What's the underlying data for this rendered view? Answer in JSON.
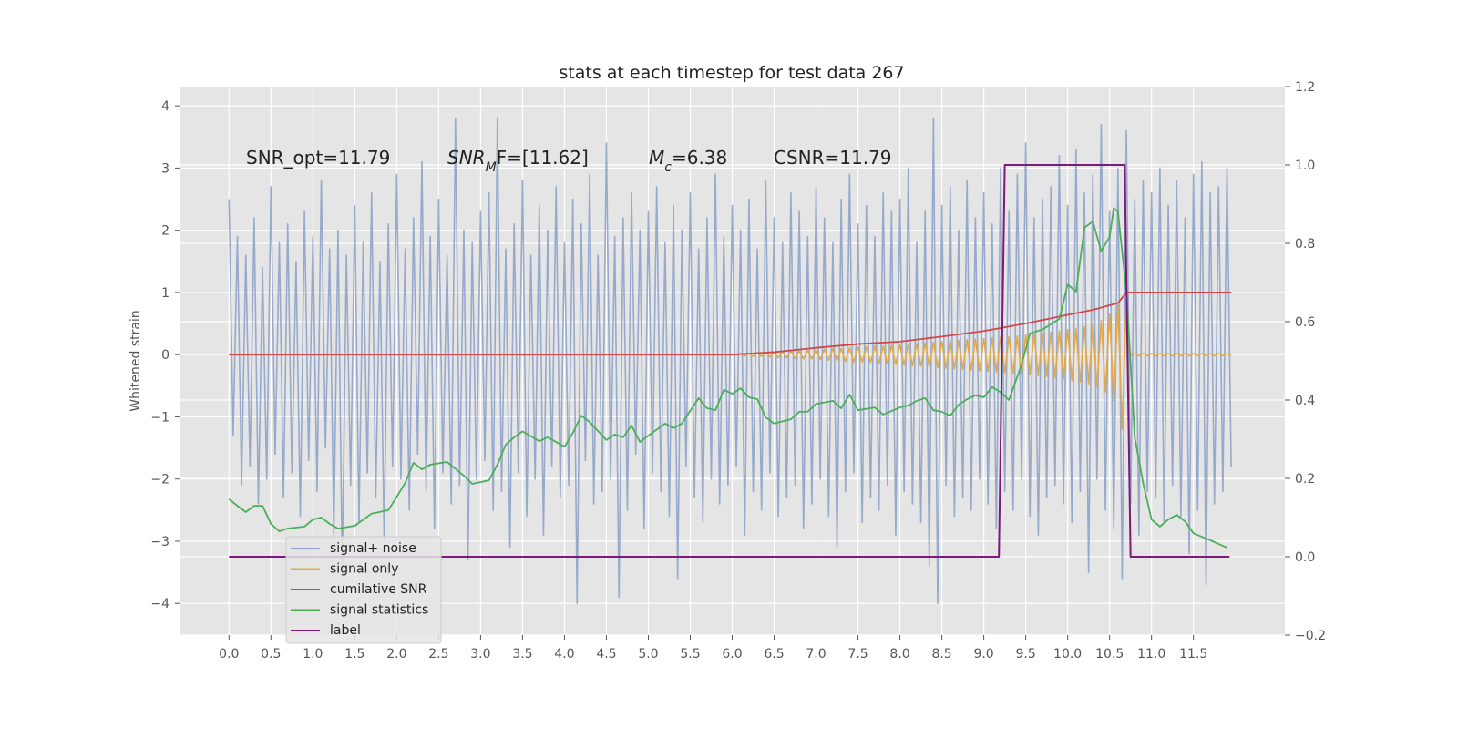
{
  "chart_data": {
    "type": "line",
    "title": "stats at each timestep for test data 267",
    "ylabel": "Whitened strain",
    "annotations": [
      [
        "SNR_opt=11.79"
      ],
      [
        "SNR",
        "M",
        "F=[11.62]"
      ],
      [
        "M",
        "c",
        "=6.38"
      ],
      [
        "CSNR=11.79"
      ]
    ],
    "grid": true,
    "legend": "lower left",
    "xlim": [
      -0.59,
      12.59
    ],
    "ylim": [
      -4.51,
      4.31
    ],
    "y2lim": [
      -0.2,
      1.2
    ],
    "xticks": [
      {
        "value": 0,
        "label": "0.0"
      },
      0.5,
      {
        "value": 1,
        "label": "1.0"
      },
      1.5,
      {
        "value": 2,
        "label": "2.0"
      },
      2.5,
      {
        "value": 3,
        "label": "3.0"
      },
      3.5,
      {
        "value": 4,
        "label": "4.0"
      },
      4.5,
      {
        "value": 5,
        "label": "5.0"
      },
      5.5,
      {
        "value": 6,
        "label": "6.0"
      },
      6.5,
      {
        "value": 7,
        "label": "7.0"
      },
      7.5,
      {
        "value": 8,
        "label": "8.0"
      },
      8.5,
      {
        "value": 9,
        "label": "9.0"
      },
      9.5,
      {
        "value": 10,
        "label": "10.0"
      },
      10.5,
      {
        "value": 11,
        "label": "11.0"
      },
      11.5
    ],
    "yticks": [
      {
        "value": -4,
        "label": "−4"
      },
      {
        "value": -3,
        "label": "−3"
      },
      {
        "value": -2,
        "label": "−2"
      },
      {
        "value": -1,
        "label": "−1"
      },
      0,
      1,
      2,
      3,
      4
    ],
    "y2ticks": [
      {
        "value": -0.2,
        "label": "−0.2"
      },
      {
        "value": 0,
        "label": "0.0"
      },
      0.2,
      0.4,
      0.6,
      0.8,
      {
        "value": 1,
        "label": "1.0"
      },
      1.2
    ],
    "x": [
      0,
      0.05,
      0.1,
      0.15,
      0.2,
      0.25,
      0.3,
      0.35,
      0.4,
      0.45,
      0.5,
      0.55,
      0.6,
      0.65,
      0.7,
      0.75,
      0.8,
      0.85,
      0.9,
      0.95,
      1,
      1.05,
      1.1,
      1.15,
      1.2,
      1.25,
      1.3,
      1.35,
      1.4,
      1.45,
      1.5,
      1.55,
      1.6,
      1.65,
      1.7,
      1.75,
      1.8,
      1.85,
      1.9,
      1.95,
      2,
      2.05,
      2.1,
      2.15,
      2.2,
      2.25,
      2.3,
      2.35,
      2.4,
      2.45,
      2.5,
      2.55,
      2.6,
      2.65,
      2.7,
      2.75,
      2.8,
      2.85,
      2.9,
      2.95,
      3,
      3.05,
      3.1,
      3.15,
      3.2,
      3.25,
      3.3,
      3.35,
      3.4,
      3.45,
      3.5,
      3.55,
      3.6,
      3.65,
      3.7,
      3.75,
      3.8,
      3.85,
      3.9,
      3.95,
      4,
      4.05,
      4.1,
      4.15,
      4.2,
      4.25,
      4.3,
      4.35,
      4.4,
      4.45,
      4.5,
      4.55,
      4.6,
      4.65,
      4.7,
      4.75,
      4.8,
      4.85,
      4.9,
      4.95,
      5,
      5.05,
      5.1,
      5.15,
      5.2,
      5.25,
      5.3,
      5.35,
      5.4,
      5.45,
      5.5,
      5.55,
      5.6,
      5.65,
      5.7,
      5.75,
      5.8,
      5.85,
      5.9,
      5.95,
      6,
      6.05,
      6.1,
      6.15,
      6.2,
      6.25,
      6.3,
      6.35,
      6.4,
      6.45,
      6.5,
      6.55,
      6.6,
      6.65,
      6.7,
      6.75,
      6.8,
      6.85,
      6.9,
      6.95,
      7,
      7.05,
      7.1,
      7.15,
      7.2,
      7.25,
      7.3,
      7.35,
      7.4,
      7.45,
      7.5,
      7.55,
      7.6,
      7.65,
      7.7,
      7.75,
      7.8,
      7.85,
      7.9,
      7.95,
      8,
      8.05,
      8.1,
      8.15,
      8.2,
      8.25,
      8.3,
      8.35,
      8.4,
      8.45,
      8.5,
      8.55,
      8.6,
      8.65,
      8.7,
      8.75,
      8.8,
      8.85,
      8.9,
      8.95,
      9,
      9.05,
      9.1,
      9.15,
      9.2,
      9.25,
      9.3,
      9.35,
      9.4,
      9.45,
      9.5,
      9.55,
      9.6,
      9.65,
      9.7,
      9.75,
      9.8,
      9.85,
      9.9,
      9.95,
      10,
      10.05,
      10.1,
      10.15,
      10.2,
      10.25,
      10.3,
      10.35,
      10.4,
      10.45,
      10.5,
      10.55,
      10.6,
      10.65,
      10.7,
      10.75,
      10.8,
      10.85,
      10.9,
      10.95,
      11,
      11.05,
      11.1,
      11.15,
      11.2,
      11.25,
      11.3,
      11.35,
      11.4,
      11.45,
      11.5,
      11.55,
      11.6,
      11.65,
      11.7,
      11.75,
      11.8,
      11.85,
      11.9,
      11.95
    ],
    "series": [
      {
        "name": "signal+ noise",
        "color": "#8ea3c9",
        "values": [
          2.5,
          -1.3,
          1.9,
          -2.1,
          1.6,
          -1.8,
          2.2,
          -2.4,
          1.4,
          -2.0,
          2.7,
          -1.6,
          1.8,
          -2.3,
          2.1,
          -1.9,
          1.5,
          -2.6,
          2.3,
          -1.7,
          1.9,
          -2.2,
          2.8,
          -1.5,
          1.7,
          -2.9,
          2.0,
          -3.5,
          1.6,
          -2.1,
          2.4,
          -2.7,
          1.8,
          -1.9,
          2.6,
          -2.3,
          1.5,
          -3.0,
          2.1,
          -1.8,
          2.9,
          -2.0,
          1.7,
          -2.5,
          2.2,
          -1.6,
          3.1,
          -2.2,
          1.9,
          -2.8,
          2.5,
          -1.9,
          1.6,
          -2.4,
          3.8,
          -2.1,
          2.0,
          -3.3,
          1.8,
          -2.0,
          2.3,
          -1.7,
          2.6,
          -2.5,
          3.8,
          -2.2,
          1.7,
          -3.1,
          2.1,
          -1.9,
          2.8,
          -2.6,
          1.6,
          -2.0,
          2.4,
          -2.9,
          2.0,
          -1.8,
          2.7,
          -2.3,
          1.8,
          -2.1,
          2.5,
          -4.0,
          2.1,
          -1.7,
          2.9,
          -2.4,
          1.6,
          -2.2,
          3.4,
          -2.0,
          1.9,
          -3.9,
          2.2,
          -2.5,
          2.6,
          -1.6,
          2.0,
          -2.8,
          2.3,
          -1.9,
          2.7,
          -2.2,
          1.8,
          -2.6,
          2.4,
          -3.6,
          2.0,
          -1.8,
          2.6,
          -2.3,
          1.7,
          -2.7,
          2.2,
          -2.0,
          2.9,
          -2.4,
          1.9,
          -2.1,
          2.4,
          -1.8,
          2.0,
          -2.9,
          2.5,
          -2.2,
          1.7,
          -2.5,
          2.8,
          -1.9,
          2.2,
          -2.6,
          1.8,
          -2.3,
          2.6,
          -2.1,
          2.3,
          -2.8,
          1.9,
          -2.4,
          2.7,
          -2.0,
          2.2,
          -2.6,
          1.8,
          -3.1,
          2.5,
          -2.2,
          2.9,
          -1.9,
          2.1,
          -2.7,
          2.4,
          -2.3,
          1.9,
          -2.5,
          2.6,
          -2.1,
          2.3,
          -2.9,
          2.5,
          -2.2,
          3.0,
          -2.4,
          1.8,
          -2.7,
          2.3,
          -3.4,
          3.8,
          -4.0,
          2.4,
          -2.1,
          2.7,
          -2.6,
          2.0,
          -2.3,
          2.8,
          -2.5,
          2.2,
          -2.0,
          2.6,
          -2.4,
          2.1,
          -2.8,
          3.0,
          -2.2,
          2.3,
          -2.5,
          2.9,
          -2.0,
          3.4,
          -2.6,
          2.2,
          -2.9,
          2.5,
          -2.3,
          2.7,
          -2.1,
          3.2,
          -2.4,
          2.4,
          -2.7,
          3.3,
          -2.2,
          2.6,
          -3.5,
          2.9,
          -2.0,
          3.7,
          -2.5,
          2.3,
          -2.8,
          3.0,
          -3.6,
          3.6,
          -2.4,
          2.5,
          -2.9,
          2.8,
          -2.2,
          2.6,
          -2.3,
          3.0,
          -2.7,
          2.4,
          -2.1,
          2.8,
          -2.6,
          2.2,
          -3.2,
          2.9,
          -2.5,
          3.1,
          -3.7,
          2.6,
          -2.4,
          2.7,
          -2.2,
          3.0,
          -1.8
        ]
      },
      {
        "name": "signal only",
        "color": "#e0aa4c",
        "values": [
          0,
          0,
          0,
          0,
          0,
          0,
          0,
          0,
          0,
          0,
          0,
          0,
          0,
          0,
          0,
          0,
          0,
          0,
          0,
          0,
          0,
          0,
          0,
          0,
          0,
          0,
          0,
          0,
          0,
          0,
          0,
          0,
          0,
          0,
          0,
          0,
          0,
          0,
          0,
          0,
          0,
          0,
          0,
          0,
          0,
          0,
          0,
          0,
          0,
          0,
          0,
          0,
          0,
          0,
          0,
          0,
          0,
          0,
          0,
          0,
          0,
          0,
          0,
          0,
          0,
          0,
          0,
          0,
          0,
          0,
          0,
          0,
          0,
          0,
          0,
          0,
          0,
          0,
          0,
          0,
          0,
          0,
          0,
          0,
          0,
          0,
          0,
          0,
          0,
          0,
          0,
          0,
          0,
          0,
          0,
          0,
          0,
          0,
          0,
          0,
          0,
          0,
          0,
          0,
          0,
          0,
          0,
          0,
          0,
          0,
          0,
          0,
          0,
          0,
          0,
          0,
          0,
          0,
          0,
          0,
          0.01,
          -0.01,
          0.02,
          -0.02,
          0.02,
          -0.03,
          0.03,
          -0.03,
          0.04,
          -0.04,
          0.04,
          -0.05,
          0.05,
          -0.05,
          0.06,
          -0.06,
          0.06,
          -0.07,
          0.07,
          -0.07,
          0.08,
          -0.08,
          0.09,
          -0.09,
          0.1,
          -0.1,
          0.1,
          -0.11,
          0.11,
          -0.12,
          0.12,
          -0.12,
          0.13,
          -0.13,
          0.14,
          -0.14,
          0.14,
          -0.15,
          0.15,
          -0.16,
          0.16,
          -0.17,
          0.17,
          -0.18,
          0.18,
          -0.19,
          0.19,
          -0.2,
          0.2,
          -0.21,
          0.21,
          -0.22,
          0.22,
          -0.23,
          0.23,
          -0.24,
          0.24,
          -0.25,
          0.25,
          -0.26,
          0.26,
          -0.27,
          0.27,
          -0.28,
          0.28,
          -0.29,
          0.29,
          -0.3,
          0.3,
          -0.31,
          0.32,
          -0.32,
          0.33,
          -0.34,
          0.35,
          -0.35,
          0.36,
          -0.37,
          0.38,
          -0.39,
          0.4,
          -0.41,
          0.42,
          -0.44,
          0.45,
          -0.47,
          0.49,
          -0.52,
          0.55,
          -0.6,
          0.65,
          -0.75,
          0.8,
          -1.2,
          0.9,
          -0.02,
          0.02,
          -0.02,
          0.02,
          -0.02,
          0.02,
          -0.02,
          0.02,
          -0.02,
          0.02,
          -0.02,
          0.02,
          -0.02,
          0.02,
          -0.02,
          0.02,
          -0.02,
          0.02,
          -0.02,
          0.02,
          -0.02,
          0.02,
          -0.02,
          0.02,
          -0.02
        ]
      },
      {
        "name": "cumilative SNR",
        "color": "#d1484a",
        "x": [
          0,
          6,
          6.5,
          7,
          7.5,
          8,
          8.5,
          9,
          9.5,
          10,
          10.3,
          10.6,
          10.7,
          11.95
        ],
        "values": [
          0,
          0,
          0.04,
          0.11,
          0.17,
          0.21,
          0.29,
          0.38,
          0.5,
          0.64,
          0.72,
          0.83,
          1.0,
          1.0
        ]
      },
      {
        "name": "signal statistics",
        "color": "#4cad5a",
        "axis": "y2",
        "x": [
          0,
          0.1,
          0.2,
          0.3,
          0.4,
          0.5,
          0.6,
          0.7,
          0.9,
          1.0,
          1.1,
          1.2,
          1.3,
          1.5,
          1.7,
          1.9,
          2.0,
          2.1,
          2.2,
          2.3,
          2.4,
          2.6,
          2.8,
          2.9,
          3.1,
          3.2,
          3.3,
          3.4,
          3.5,
          3.7,
          3.8,
          4.0,
          4.1,
          4.2,
          4.3,
          4.5,
          4.6,
          4.7,
          4.8,
          4.9,
          5.0,
          5.2,
          5.3,
          5.4,
          5.6,
          5.7,
          5.8,
          5.9,
          6.0,
          6.1,
          6.2,
          6.3,
          6.4,
          6.5,
          6.7,
          6.8,
          6.9,
          7.0,
          7.2,
          7.3,
          7.4,
          7.5,
          7.7,
          7.8,
          8.0,
          8.1,
          8.2,
          8.3,
          8.4,
          8.5,
          8.6,
          8.7,
          8.8,
          8.9,
          9.0,
          9.1,
          9.2,
          9.3,
          9.45,
          9.55,
          9.7,
          9.9,
          10.0,
          10.1,
          10.2,
          10.3,
          10.4,
          10.5,
          10.55,
          10.6,
          10.7,
          10.8,
          10.9,
          11.0,
          11.1,
          11.2,
          11.3,
          11.4,
          11.5,
          11.7,
          11.9
        ],
        "values": [
          0.147,
          0.13,
          0.114,
          0.13,
          0.13,
          0.084,
          0.065,
          0.072,
          0.077,
          0.095,
          0.1,
          0.084,
          0.072,
          0.079,
          0.11,
          0.119,
          0.153,
          0.188,
          0.24,
          0.223,
          0.235,
          0.242,
          0.207,
          0.186,
          0.195,
          0.235,
          0.286,
          0.305,
          0.32,
          0.295,
          0.305,
          0.281,
          0.316,
          0.36,
          0.344,
          0.298,
          0.312,
          0.305,
          0.335,
          0.293,
          0.309,
          0.34,
          0.328,
          0.34,
          0.405,
          0.379,
          0.374,
          0.426,
          0.416,
          0.43,
          0.407,
          0.402,
          0.356,
          0.34,
          0.351,
          0.37,
          0.37,
          0.39,
          0.398,
          0.379,
          0.414,
          0.374,
          0.381,
          0.363,
          0.381,
          0.386,
          0.398,
          0.405,
          0.374,
          0.37,
          0.36,
          0.388,
          0.402,
          0.412,
          0.407,
          0.433,
          0.42,
          0.4,
          0.49,
          0.57,
          0.58,
          0.607,
          0.695,
          0.677,
          0.84,
          0.856,
          0.78,
          0.816,
          0.89,
          0.88,
          0.677,
          0.305,
          0.188,
          0.095,
          0.077,
          0.095,
          0.107,
          0.09,
          0.06,
          0.042,
          0.023
        ]
      },
      {
        "name": "label",
        "color": "#7b1a7b",
        "axis": "y2",
        "x": [
          0,
          9.18,
          9.25,
          10.68,
          10.75,
          11.93
        ],
        "values": [
          0,
          0,
          1,
          1,
          0,
          0
        ]
      }
    ]
  }
}
